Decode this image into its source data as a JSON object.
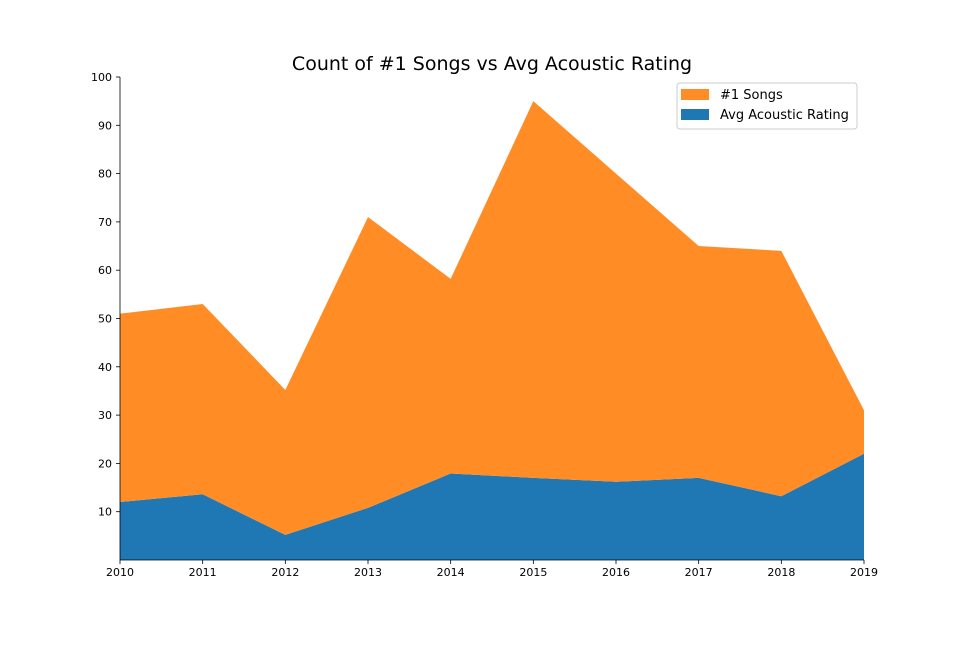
{
  "chart_data": {
    "type": "area",
    "stacked": true,
    "title": "Count of #1 Songs vs Avg Acoustic Rating",
    "xlabel": "",
    "ylabel": "",
    "x": [
      2010,
      2011,
      2012,
      2013,
      2014,
      2015,
      2016,
      2017,
      2018,
      2019
    ],
    "x_tick_labels": [
      "2010",
      "2011",
      "2012",
      "2013",
      "2014",
      "2015",
      "2016",
      "2017",
      "2018",
      "2019"
    ],
    "y_tick_labels": [
      "10",
      "20",
      "30",
      "40",
      "50",
      "60",
      "70",
      "80",
      "90",
      "100"
    ],
    "xlim": [
      2010,
      2019
    ],
    "ylim": [
      0,
      100
    ],
    "grid": false,
    "legend_position": "top-right",
    "series": [
      {
        "name": "Avg Acoustic Rating",
        "color": "#1f77b4",
        "values": [
          12,
          13.6,
          5.2,
          10.8,
          17.9,
          17,
          16.2,
          17,
          13.2,
          22
        ]
      },
      {
        "name": "#1 Songs",
        "color": "#ff8c25",
        "values": [
          39,
          39.4,
          30,
          60.2,
          40.3,
          78,
          63.8,
          48,
          50.8,
          9
        ]
      }
    ],
    "legend_order": [
      "#1 Songs",
      "Avg Acoustic Rating"
    ]
  }
}
